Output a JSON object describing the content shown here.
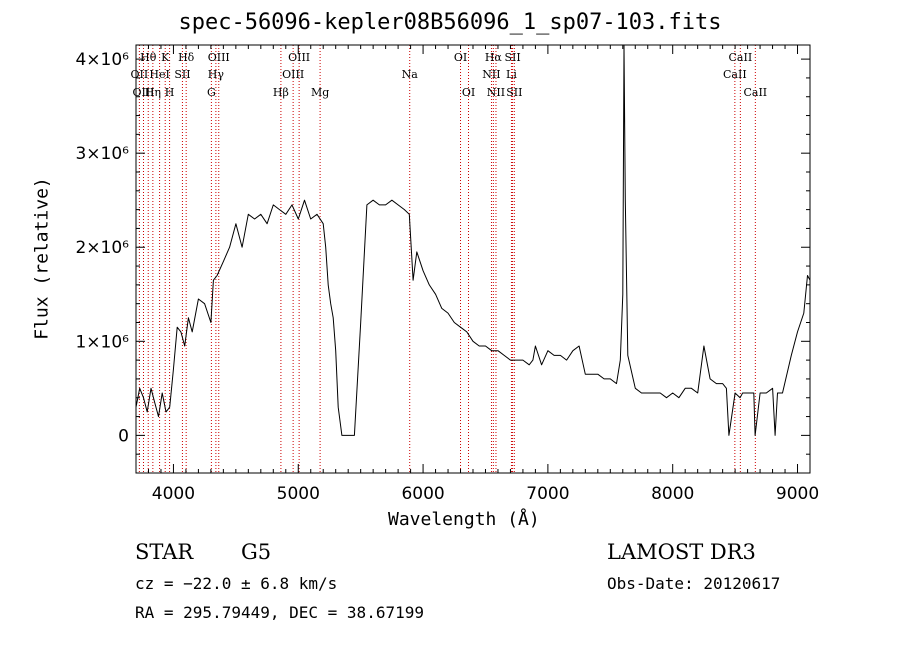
{
  "chart_data": {
    "type": "line",
    "title": "spec-56096-kepler08B56096_1_sp07-103.fits",
    "xlabel": "Wavelength (Å)",
    "ylabel": "Flux (relative)",
    "xlim": [
      3700,
      9100
    ],
    "ylim": [
      -400000,
      4150000
    ],
    "x_ticks": [
      4000,
      5000,
      6000,
      7000,
      8000,
      9000
    ],
    "x_tick_labels": [
      "4000",
      "5000",
      "6000",
      "7000",
      "8000",
      "9000"
    ],
    "y_ticks": [
      0,
      1000000,
      2000000,
      3000000,
      4000000
    ],
    "y_tick_labels": [
      "0",
      "1×10⁶",
      "2×10⁶",
      "3×10⁶",
      "4×10⁶"
    ],
    "series": [
      {
        "name": "spectrum",
        "x": [
          3700,
          3730,
          3760,
          3790,
          3820,
          3850,
          3880,
          3910,
          3940,
          3970,
          4000,
          4030,
          4060,
          4090,
          4120,
          4150,
          4200,
          4250,
          4300,
          4320,
          4350,
          4400,
          4450,
          4500,
          4550,
          4600,
          4650,
          4700,
          4750,
          4800,
          4850,
          4900,
          4950,
          5000,
          5050,
          5100,
          5150,
          5200,
          5220,
          5240,
          5260,
          5280,
          5300,
          5320,
          5350,
          5400,
          5450,
          5500,
          5550,
          5600,
          5650,
          5700,
          5750,
          5800,
          5850,
          5890,
          5920,
          5950,
          6000,
          6050,
          6100,
          6150,
          6200,
          6250,
          6300,
          6350,
          6400,
          6450,
          6500,
          6550,
          6600,
          6650,
          6700,
          6750,
          6800,
          6850,
          6880,
          6900,
          6950,
          7000,
          7050,
          7100,
          7150,
          7200,
          7250,
          7300,
          7350,
          7400,
          7450,
          7500,
          7550,
          7580,
          7600,
          7610,
          7620,
          7640,
          7700,
          7750,
          7800,
          7850,
          7900,
          7950,
          8000,
          8050,
          8100,
          8150,
          8200,
          8250,
          8300,
          8350,
          8400,
          8430,
          8450,
          8500,
          8540,
          8560,
          8600,
          8650,
          8660,
          8700,
          8750,
          8800,
          8820,
          8840,
          8880,
          8950,
          9000,
          9050,
          9080,
          9100
        ],
        "y": [
          300000,
          500000,
          400000,
          250000,
          500000,
          350000,
          200000,
          450000,
          250000,
          300000,
          700000,
          1150000,
          1100000,
          950000,
          1250000,
          1100000,
          1450000,
          1400000,
          1200000,
          1650000,
          1700000,
          1850000,
          2000000,
          2250000,
          2000000,
          2350000,
          2300000,
          2350000,
          2250000,
          2450000,
          2400000,
          2350000,
          2450000,
          2300000,
          2500000,
          2300000,
          2350000,
          2250000,
          2000000,
          1600000,
          1400000,
          1250000,
          900000,
          300000,
          0,
          0,
          0,
          1200000,
          2450000,
          2500000,
          2450000,
          2450000,
          2500000,
          2450000,
          2400000,
          2350000,
          1650000,
          1950000,
          1750000,
          1600000,
          1500000,
          1350000,
          1300000,
          1200000,
          1150000,
          1100000,
          1000000,
          950000,
          950000,
          900000,
          900000,
          850000,
          800000,
          800000,
          800000,
          750000,
          800000,
          950000,
          750000,
          900000,
          850000,
          850000,
          800000,
          900000,
          950000,
          650000,
          650000,
          650000,
          600000,
          600000,
          550000,
          800000,
          1500000,
          4150000,
          2500000,
          850000,
          500000,
          450000,
          450000,
          450000,
          450000,
          400000,
          450000,
          400000,
          500000,
          500000,
          450000,
          950000,
          600000,
          550000,
          550000,
          500000,
          0,
          450000,
          400000,
          450000,
          450000,
          450000,
          0,
          450000,
          450000,
          500000,
          0,
          450000,
          450000,
          850000,
          1100000,
          1300000,
          1700000,
          1650000
        ]
      }
    ],
    "line_markers": [
      {
        "label": "Hθ",
        "x": 3798,
        "row": 1
      },
      {
        "label": "OII",
        "x": 3727,
        "row": 2
      },
      {
        "label": "OIII",
        "x": 3760,
        "row": 3
      },
      {
        "label": "Hη",
        "x": 3835,
        "row": 3
      },
      {
        "label": "K",
        "x": 3934,
        "row": 1
      },
      {
        "label": "HeI",
        "x": 3889,
        "row": 2
      },
      {
        "label": "H",
        "x": 3969,
        "row": 3
      },
      {
        "label": "SII",
        "x": 4072,
        "row": 2
      },
      {
        "label": "Hδ",
        "x": 4102,
        "row": 1
      },
      {
        "label": "OIII",
        "x": 4363,
        "row": 1
      },
      {
        "label": "Hγ",
        "x": 4340,
        "row": 2
      },
      {
        "label": "G",
        "x": 4304,
        "row": 3
      },
      {
        "label": "Hβ",
        "x": 4861,
        "row": 3
      },
      {
        "label": "OIII",
        "x": 5007,
        "row": 1
      },
      {
        "label": "OIII",
        "x": 4959,
        "row": 2
      },
      {
        "label": "Mg",
        "x": 5175,
        "row": 3
      },
      {
        "label": "Na",
        "x": 5893,
        "row": 2
      },
      {
        "label": "OI",
        "x": 6300,
        "row": 1
      },
      {
        "label": "OI",
        "x": 6364,
        "row": 3
      },
      {
        "label": "Hα",
        "x": 6563,
        "row": 1
      },
      {
        "label": "NII",
        "x": 6548,
        "row": 2
      },
      {
        "label": "NII",
        "x": 6584,
        "row": 3
      },
      {
        "label": "SII",
        "x": 6717,
        "row": 1
      },
      {
        "label": "Li",
        "x": 6708,
        "row": 2
      },
      {
        "label": "SII",
        "x": 6731,
        "row": 3
      },
      {
        "label": "CaII",
        "x": 8542,
        "row": 1
      },
      {
        "label": "CaII",
        "x": 8498,
        "row": 2
      },
      {
        "label": "CaII",
        "x": 8662,
        "row": 3
      }
    ],
    "marker_color": "#cc0000"
  },
  "info": {
    "class": "STAR",
    "subclass": "G5",
    "survey": "LAMOST DR3",
    "cz": "cz = −22.0 ± 6.8 km/s",
    "obs_date": "Obs-Date: 20120617",
    "coords": "RA = 295.79449, DEC =  38.67199"
  }
}
